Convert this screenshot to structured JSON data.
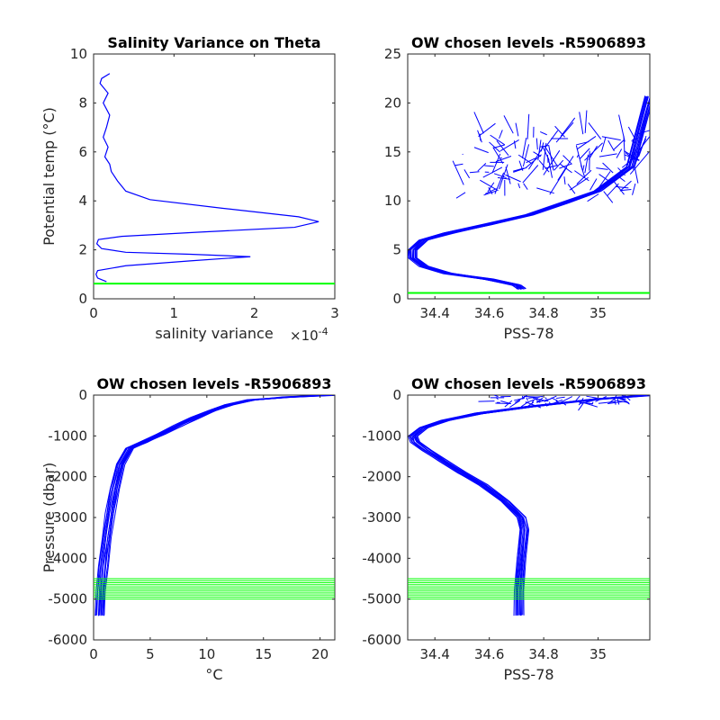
{
  "chart_data": [
    {
      "type": "line",
      "title": "Salinity Variance on Theta",
      "xlabel": "salinity variance",
      "xexponent_base": "×10",
      "xexponent_power": "-4",
      "ylabel": "Potential temp (°C)",
      "xlim": [
        0,
        3
      ],
      "ylim": [
        0,
        10
      ],
      "xticks": [
        0,
        1,
        2,
        3
      ],
      "yticks": [
        0,
        2,
        4,
        6,
        8,
        10
      ],
      "series": [
        {
          "color": "#0000ff",
          "kind": "profile",
          "points": [
            [
              0.16,
              0.7
            ],
            [
              0.05,
              0.85
            ],
            [
              0.03,
              1.0
            ],
            [
              0.05,
              1.15
            ],
            [
              0.4,
              1.35
            ],
            [
              1.2,
              1.55
            ],
            [
              1.95,
              1.72
            ],
            [
              1.2,
              1.82
            ],
            [
              0.4,
              1.9
            ],
            [
              0.1,
              2.05
            ],
            [
              0.04,
              2.25
            ],
            [
              0.06,
              2.42
            ],
            [
              0.35,
              2.55
            ],
            [
              1.3,
              2.72
            ],
            [
              2.5,
              2.92
            ],
            [
              2.8,
              3.15
            ],
            [
              2.55,
              3.35
            ],
            [
              1.6,
              3.7
            ],
            [
              0.7,
              4.05
            ],
            [
              0.4,
              4.4
            ],
            [
              0.3,
              4.8
            ],
            [
              0.22,
              5.2
            ],
            [
              0.2,
              5.5
            ],
            [
              0.14,
              5.8
            ],
            [
              0.18,
              6.2
            ],
            [
              0.12,
              6.6
            ],
            [
              0.16,
              7.0
            ],
            [
              0.2,
              7.5
            ],
            [
              0.12,
              8.0
            ],
            [
              0.18,
              8.4
            ],
            [
              0.08,
              8.8
            ],
            [
              0.1,
              9.0
            ],
            [
              0.2,
              9.2
            ]
          ]
        },
        {
          "color": "#00ff00",
          "kind": "level",
          "y": 0.62
        }
      ]
    },
    {
      "type": "line",
      "title": "OW chosen levels -R5906893",
      "xlabel": "PSS-78",
      "ylabel": "",
      "xlim": [
        34.3,
        35.19
      ],
      "ylim": [
        0,
        25
      ],
      "xticks": [
        34.4,
        34.6,
        34.8,
        35
      ],
      "xtick_labels": [
        "34.4",
        "34.6",
        "34.8",
        "35"
      ],
      "yticks": [
        0,
        5,
        10,
        15,
        20,
        25
      ],
      "series": [
        {
          "color": "#0000ff",
          "kind": "profile-bundle",
          "points": [
            [
              34.72,
              1.0
            ],
            [
              34.7,
              1.4
            ],
            [
              34.6,
              2.0
            ],
            [
              34.45,
              2.6
            ],
            [
              34.36,
              3.3
            ],
            [
              34.32,
              4.2
            ],
            [
              34.32,
              5.0
            ],
            [
              34.36,
              6.0
            ],
            [
              34.45,
              6.7
            ],
            [
              34.6,
              7.6
            ],
            [
              34.75,
              8.6
            ],
            [
              34.88,
              9.8
            ],
            [
              35.0,
              11.0
            ],
            [
              35.12,
              13.5
            ],
            [
              35.19,
              20.7
            ]
          ]
        },
        {
          "color": "#00ff00",
          "kind": "level",
          "y": 0.6
        }
      ]
    },
    {
      "type": "line",
      "title": "OW chosen levels -R5906893",
      "xlabel": "°C",
      "ylabel": "Pressure (dbar)",
      "xlim": [
        0,
        21.3
      ],
      "ylim": [
        -6000,
        0
      ],
      "xticks": [
        0,
        5,
        10,
        15,
        20
      ],
      "yticks": [
        -6000,
        -5000,
        -4000,
        -3000,
        -2000,
        -1000,
        0
      ],
      "series": [
        {
          "color": "#0000ff",
          "kind": "profile-bundle",
          "points": [
            [
              0.6,
              -5400
            ],
            [
              0.7,
              -4800
            ],
            [
              0.9,
              -4200
            ],
            [
              1.2,
              -3500
            ],
            [
              1.5,
              -2900
            ],
            [
              1.9,
              -2300
            ],
            [
              2.4,
              -1700
            ],
            [
              3.2,
              -1300
            ],
            [
              4.5,
              -1150
            ],
            [
              6.0,
              -950
            ],
            [
              7.5,
              -750
            ],
            [
              9.0,
              -550
            ],
            [
              10.5,
              -380
            ],
            [
              12.0,
              -230
            ],
            [
              14.0,
              -120
            ],
            [
              17.0,
              -50
            ],
            [
              21.3,
              0
            ]
          ]
        },
        {
          "color": "#00ff00",
          "kind": "level-band",
          "y": [
            -4500,
            -5000
          ]
        }
      ]
    },
    {
      "type": "line",
      "title": "OW chosen levels -R5906893",
      "xlabel": "PSS-78",
      "ylabel": "",
      "xlim": [
        34.3,
        35.19
      ],
      "ylim": [
        -6000,
        0
      ],
      "xticks": [
        34.4,
        34.6,
        34.8,
        35
      ],
      "xtick_labels": [
        "34.4",
        "34.6",
        "34.8",
        "35"
      ],
      "yticks": [
        -6000,
        -5000,
        -4000,
        -3000,
        -2000,
        -1000,
        0
      ],
      "series": [
        {
          "color": "#0000ff",
          "kind": "profile-bundle",
          "points": [
            [
              34.71,
              -5400
            ],
            [
              34.71,
              -4800
            ],
            [
              34.72,
              -4000
            ],
            [
              34.73,
              -3300
            ],
            [
              34.72,
              -3000
            ],
            [
              34.66,
              -2600
            ],
            [
              34.58,
              -2200
            ],
            [
              34.5,
              -1900
            ],
            [
              34.43,
              -1600
            ],
            [
              34.37,
              -1350
            ],
            [
              34.33,
              -1150
            ],
            [
              34.32,
              -1000
            ],
            [
              34.36,
              -800
            ],
            [
              34.44,
              -620
            ],
            [
              34.56,
              -450
            ],
            [
              34.75,
              -280
            ],
            [
              35.0,
              -100
            ],
            [
              35.19,
              0
            ]
          ]
        },
        {
          "color": "#00ff00",
          "kind": "level-band",
          "y": [
            -4500,
            -5000
          ]
        }
      ]
    }
  ]
}
